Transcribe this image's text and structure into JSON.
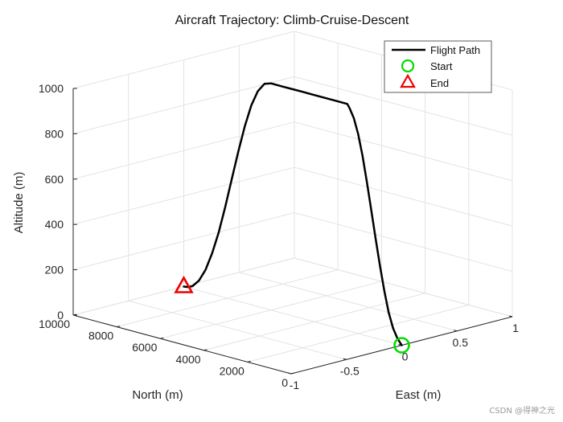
{
  "chart_data": {
    "type": "line",
    "projection": "3d",
    "title": "Aircraft Trajectory: Climb-Cruise-Descent",
    "xlabel": "North (m)",
    "ylabel": "East (m)",
    "zlabel": "Altitude (m)",
    "xlim": [
      0,
      10000
    ],
    "ylim": [
      -1,
      1
    ],
    "zlim": [
      0,
      1000
    ],
    "x_ticks": [
      "0",
      "2000",
      "4000",
      "6000",
      "8000",
      "10000"
    ],
    "y_ticks": [
      "-1",
      "-0.5",
      "0",
      "0.5",
      "1"
    ],
    "z_ticks": [
      "0",
      "200",
      "400",
      "600",
      "800",
      "1000"
    ],
    "grid": true,
    "legend_position": "top-right",
    "series": [
      {
        "name": "Flight Path",
        "color": "#000000",
        "points": [
          [
            0,
            0,
            0
          ],
          [
            200,
            0,
            25
          ],
          [
            400,
            0,
            65
          ],
          [
            600,
            0,
            130
          ],
          [
            800,
            0,
            220
          ],
          [
            1000,
            0,
            325
          ],
          [
            1200,
            0,
            440
          ],
          [
            1400,
            0,
            560
          ],
          [
            1600,
            0,
            680
          ],
          [
            1800,
            0,
            790
          ],
          [
            2000,
            0,
            880
          ],
          [
            2200,
            0,
            945
          ],
          [
            2400,
            0,
            985
          ],
          [
            2500,
            0,
            1000
          ],
          [
            3000,
            0,
            1000
          ],
          [
            3500,
            0,
            1000
          ],
          [
            4000,
            0,
            1000
          ],
          [
            4500,
            0,
            1000
          ],
          [
            5000,
            0,
            1000
          ],
          [
            5500,
            0,
            1000
          ],
          [
            6000,
            0,
            1000
          ],
          [
            6300,
            0,
            990
          ],
          [
            6600,
            0,
            950
          ],
          [
            6900,
            0,
            880
          ],
          [
            7200,
            0,
            780
          ],
          [
            7500,
            0,
            660
          ],
          [
            7800,
            0,
            530
          ],
          [
            8100,
            0,
            400
          ],
          [
            8400,
            0,
            280
          ],
          [
            8700,
            0,
            180
          ],
          [
            9000,
            0,
            100
          ],
          [
            9300,
            0,
            45
          ],
          [
            9600,
            0,
            12
          ],
          [
            9800,
            0,
            3
          ],
          [
            10000,
            0,
            0
          ]
        ]
      }
    ],
    "markers": [
      {
        "name": "Start",
        "shape": "circle",
        "color": "#00dd00",
        "point": [
          0,
          0,
          0
        ]
      },
      {
        "name": "End",
        "shape": "triangle",
        "color": "#ee0000",
        "point": [
          10000,
          0,
          0
        ]
      }
    ]
  },
  "watermark": "CSDN @得神之光"
}
